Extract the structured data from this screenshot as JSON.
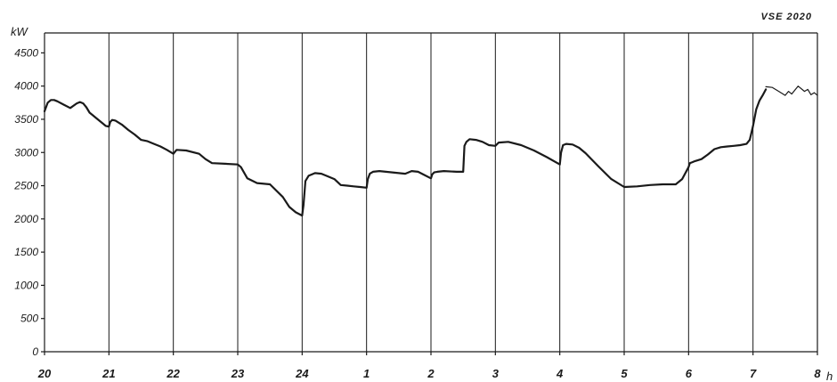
{
  "chart_data": {
    "type": "line",
    "corner_label": "VSE 2020",
    "xlabel": "h",
    "ylabel": "kW",
    "ylim": [
      0,
      4800
    ],
    "xlim": [
      20,
      32
    ],
    "yticks": [
      0,
      500,
      1000,
      1500,
      2000,
      2500,
      3000,
      3500,
      4000,
      4500
    ],
    "ytick_labels": [
      "0",
      "500",
      "1000",
      "1500",
      "2000",
      "2500",
      "3000",
      "3500",
      "4000",
      "4500"
    ],
    "xticks": [
      20,
      21,
      22,
      23,
      24,
      25,
      26,
      27,
      28,
      29,
      30,
      31,
      32
    ],
    "xtick_labels": [
      "20",
      "21",
      "22",
      "23",
      "24",
      "1",
      "2",
      "3",
      "4",
      "5",
      "6",
      "7",
      "8"
    ],
    "grid": {
      "vertical": true,
      "horizontal": false
    },
    "series": [
      {
        "x": [
          20.0,
          20.05,
          20.1,
          20.15,
          20.2,
          20.3,
          20.4,
          20.5,
          20.55,
          20.6,
          20.65,
          20.7,
          20.75,
          20.8,
          20.9,
          20.95,
          21.0,
          21.02,
          21.05,
          21.1,
          21.2,
          21.3,
          21.4,
          21.5,
          21.6,
          21.7,
          21.8,
          21.9,
          22.0,
          22.05,
          22.2,
          22.4,
          22.5,
          22.6,
          22.8,
          23.0,
          23.05,
          23.15,
          23.3,
          23.5,
          23.7,
          23.8,
          23.9,
          24.0,
          24.02,
          24.05,
          24.1,
          24.2,
          24.3,
          24.4,
          24.5,
          24.6,
          24.7,
          24.8,
          24.9,
          25.0,
          25.02,
          25.05,
          25.1,
          25.2,
          25.4,
          25.6,
          25.7,
          25.8,
          25.9,
          26.0,
          26.02,
          26.05,
          26.1,
          26.2,
          26.4,
          26.5,
          26.52,
          26.55,
          26.6,
          26.7,
          26.8,
          26.9,
          27.0,
          27.05,
          27.2,
          27.4,
          27.6,
          27.8,
          28.0,
          28.02,
          28.05,
          28.1,
          28.2,
          28.3,
          28.4,
          28.6,
          28.8,
          29.0,
          29.2,
          29.4,
          29.6,
          29.8,
          29.9,
          30.0,
          30.02,
          30.05,
          30.1,
          30.2,
          30.3,
          30.4,
          30.5,
          30.6,
          30.7,
          30.8,
          30.9,
          30.95,
          31.0,
          31.05,
          31.1,
          31.15,
          31.2
        ],
        "y": [
          3620,
          3750,
          3790,
          3790,
          3770,
          3720,
          3670,
          3740,
          3760,
          3740,
          3680,
          3600,
          3560,
          3520,
          3440,
          3400,
          3390,
          3460,
          3490,
          3480,
          3420,
          3340,
          3270,
          3190,
          3170,
          3130,
          3090,
          3040,
          2980,
          3040,
          3030,
          2980,
          2900,
          2840,
          2830,
          2820,
          2780,
          2610,
          2540,
          2520,
          2330,
          2180,
          2100,
          2050,
          2200,
          2570,
          2650,
          2690,
          2680,
          2640,
          2600,
          2510,
          2500,
          2490,
          2480,
          2470,
          2600,
          2680,
          2710,
          2720,
          2700,
          2680,
          2720,
          2710,
          2660,
          2610,
          2670,
          2700,
          2710,
          2720,
          2710,
          2710,
          3100,
          3160,
          3200,
          3190,
          3160,
          3110,
          3100,
          3150,
          3160,
          3110,
          3030,
          2930,
          2820,
          3000,
          3110,
          3130,
          3120,
          3070,
          2990,
          2790,
          2600,
          2480,
          2490,
          2510,
          2520,
          2520,
          2600,
          2780,
          2840,
          2850,
          2870,
          2900,
          2970,
          3050,
          3080,
          3090,
          3100,
          3110,
          3130,
          3190,
          3400,
          3650,
          3780,
          3860,
          3950
        ]
      },
      {
        "thin": true,
        "x": [
          31.2,
          31.3,
          31.4,
          31.5,
          31.55,
          31.6,
          31.7,
          31.8,
          31.85,
          31.9,
          31.95,
          32.0
        ],
        "y": [
          3990,
          3980,
          3920,
          3860,
          3920,
          3880,
          4000,
          3920,
          3950,
          3870,
          3900,
          3860
        ]
      }
    ]
  }
}
